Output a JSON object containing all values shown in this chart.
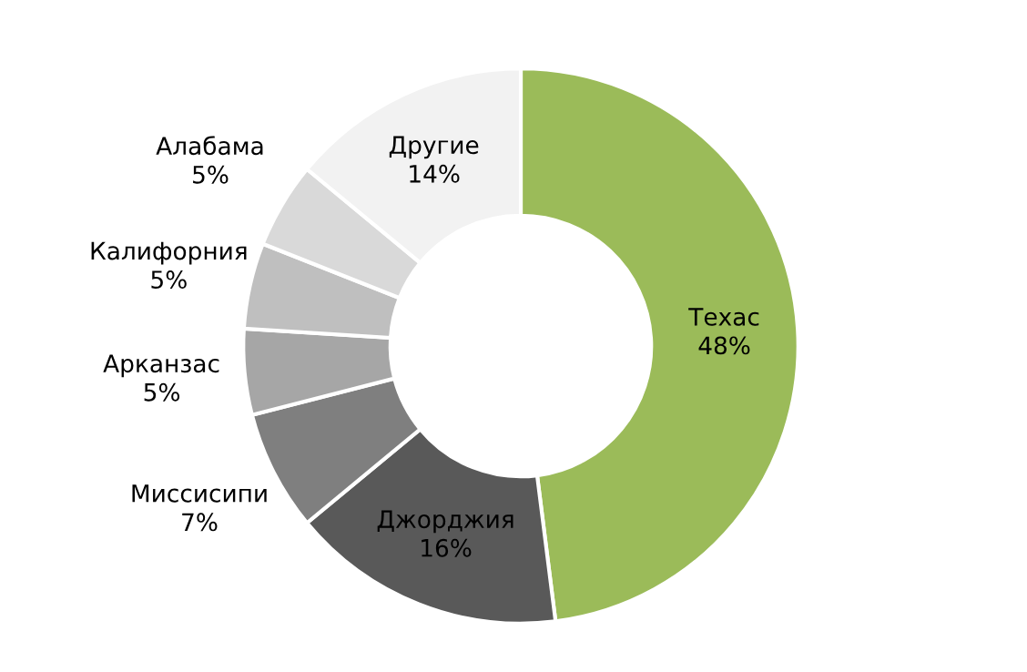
{
  "chart_data": {
    "type": "donut",
    "categories": [
      "Техас",
      "Джорджия",
      "Миссисипи",
      "Арканзас",
      "Калифорния",
      "Алабама",
      "Другие"
    ],
    "values": [
      48,
      16,
      7,
      5,
      5,
      5,
      14
    ],
    "value_labels": [
      "48%",
      "16%",
      "7%",
      "5%",
      "5%",
      "5%",
      "14%"
    ],
    "colors": [
      "#9bbb59",
      "#595959",
      "#7f7f7f",
      "#a6a6a6",
      "#bfbfbf",
      "#d9d9d9",
      "#f2f2f2"
    ],
    "legend": false
  }
}
